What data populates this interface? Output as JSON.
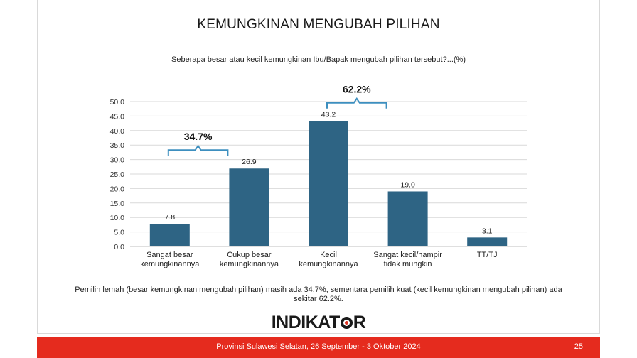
{
  "slide": {
    "title": "KEMUNGKINAN MENGUBAH PILIHAN",
    "subtitle": "Seberapa besar atau kecil kemungkinan Ibu/Bapak mengubah pilihan tersebut?...(%)",
    "note": "Pemilih lemah (besar kemungkinan mengubah pilihan) masih ada 34.7%, sementara pemilih kuat (kecil kemungkinan mengubah pilihan) ada sekitar 62.2%.",
    "logo_text_left": "INDIKAT",
    "logo_text_right": "R",
    "footer_text": "Provinsi Sulawesi Selatan, 26 September - 3 Oktober 2024",
    "page_number": "25"
  },
  "colors": {
    "bar": "#2e6484",
    "bracket": "#3d8fbf",
    "footer": "#e52b1e"
  },
  "chart_data": {
    "type": "bar",
    "categories": [
      [
        "Sangat besar",
        "kemungkinannya"
      ],
      [
        "Cukup besar",
        "kemungkinannya"
      ],
      [
        "Kecil",
        "kemungkinannya"
      ],
      [
        "Sangat kecil/hampir",
        "tidak mungkin"
      ],
      [
        "TT/TJ"
      ]
    ],
    "values": [
      7.8,
      26.9,
      43.2,
      19.0,
      3.1
    ],
    "value_labels": [
      "7.8",
      "26.9",
      "43.2",
      "19.0",
      "3.1"
    ],
    "ylim": [
      0,
      50
    ],
    "yticks": [
      "0.0",
      "5.0",
      "10.0",
      "15.0",
      "20.0",
      "25.0",
      "30.0",
      "35.0",
      "40.0",
      "45.0",
      "50.0"
    ],
    "grid": true,
    "groups": [
      {
        "label": "34.7%",
        "from": 0,
        "to": 1
      },
      {
        "label": "62.2%",
        "from": 2,
        "to": 3
      }
    ]
  }
}
